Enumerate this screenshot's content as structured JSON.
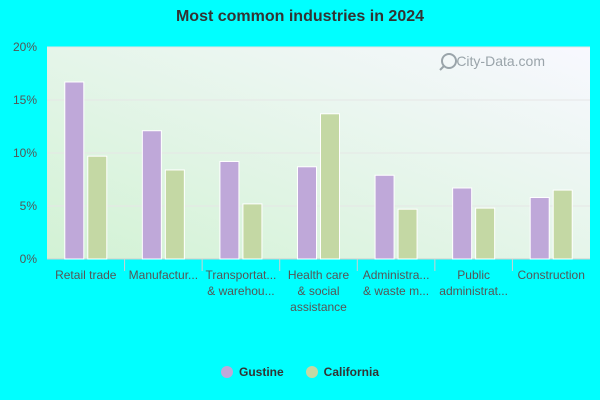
{
  "chart_data": {
    "type": "bar",
    "title": "Most common industries in 2024",
    "categories": [
      [
        "Retail trade"
      ],
      [
        "Manufactur..."
      ],
      [
        "Transportat...",
        "& warehou..."
      ],
      [
        "Health care",
        "& social",
        "assistance"
      ],
      [
        "Administra...",
        "& waste m..."
      ],
      [
        "Public",
        "administrat..."
      ],
      [
        "Construction"
      ]
    ],
    "series": [
      {
        "name": "Gustine",
        "color": "#bfa8d9",
        "values": [
          16.7,
          12.1,
          9.2,
          8.7,
          7.9,
          6.7,
          5.8
        ]
      },
      {
        "name": "California",
        "color": "#c4d8a4",
        "values": [
          9.7,
          8.4,
          5.2,
          13.7,
          4.7,
          4.8,
          6.5
        ]
      }
    ],
    "ylim": [
      0,
      20
    ],
    "yticks": [
      "0%",
      "5%",
      "10%",
      "15%",
      "20%"
    ],
    "grid": true,
    "legend_placement": "bottom-center"
  },
  "watermark": "City-Data.com"
}
